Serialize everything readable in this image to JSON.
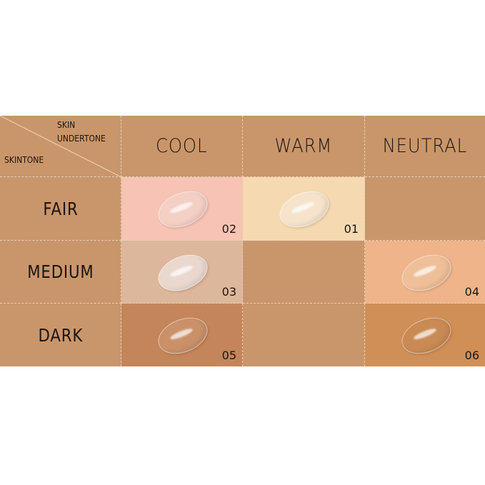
{
  "corner": {
    "top_label_line1": "SKIN",
    "top_label_line2": "UNDERTONE",
    "bottom_label": "SKINTONE"
  },
  "columns": [
    "COOL",
    "WARM",
    "NEUTRAL"
  ],
  "rows": [
    "FAIR",
    "MEDIUM",
    "DARK"
  ],
  "shades": {
    "fair_cool": {
      "code": "02",
      "bg": "#f6c3b4",
      "swatch": "#f3cfc4"
    },
    "fair_warm": {
      "code": "01",
      "bg": "#f5d9b1",
      "swatch": "#f6e3cb"
    },
    "medium_cool": {
      "code": "03",
      "bg": "#dcb79c",
      "swatch": "#ead8cf"
    },
    "medium_neutral": {
      "code": "04",
      "bg": "#efb48a",
      "swatch": "#eebf98"
    },
    "dark_cool": {
      "code": "05",
      "bg": "#c4855a",
      "swatch": "#c9906a"
    },
    "dark_neutral": {
      "code": "06",
      "bg": "#d08f57",
      "swatch": "#c98a54"
    }
  },
  "colors": {
    "table_bg": "#c9966b",
    "text": "#1e1410"
  }
}
